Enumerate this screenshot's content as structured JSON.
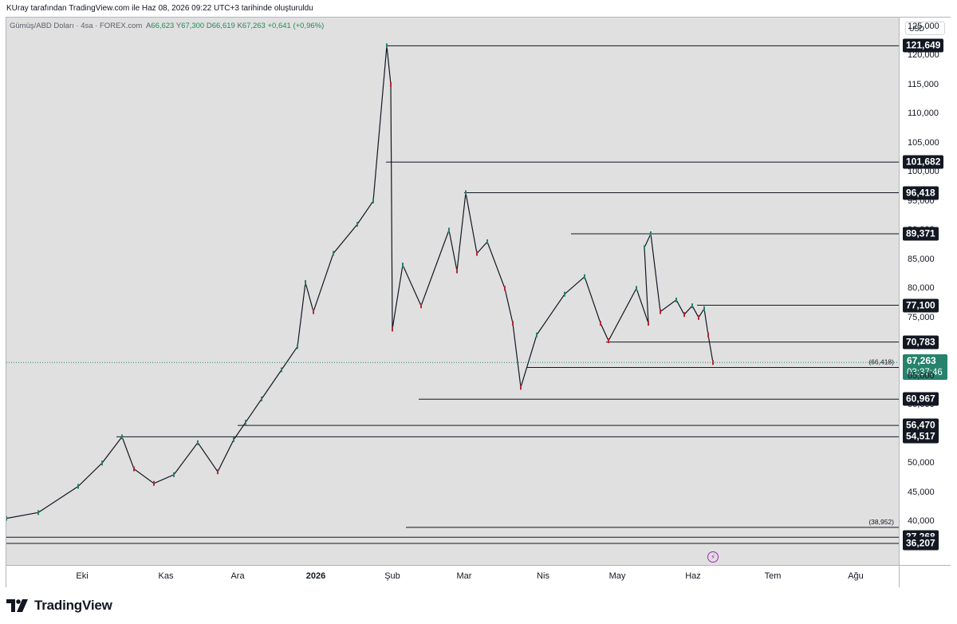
{
  "caption": "KUray tarafından TradingView.com ile Haz 08, 2026 09:22 UTC+3 tarihinde oluşturuldu",
  "legend": {
    "symbol": "Gümüş/ABD Doları · 4sa · FOREX.com",
    "open_label": "A",
    "open": "66,623",
    "high_label": "Y",
    "high": "67,300",
    "low_label": "D",
    "low": "66,619",
    "close_label": "K",
    "close": "67,263",
    "change": "+0,641 (+0,96%)"
  },
  "currency": "USD",
  "current_price": {
    "value": "67,263",
    "countdown": "03:37:46",
    "color": "#26826c"
  },
  "logo_text": "TradingView",
  "alert_icon": "lightning-bolt-icon",
  "chart_data": {
    "type": "line",
    "title": "Gümüş/ABD Doları · 4sa · FOREX.com",
    "ylim": [
      32500,
      126500
    ],
    "y_ticks": [
      {
        "value": 40000,
        "label": "40,000"
      },
      {
        "value": 45000,
        "label": "45,000"
      },
      {
        "value": 50000,
        "label": "50,000"
      },
      {
        "value": 55000,
        "label": "55,000"
      },
      {
        "value": 60000,
        "label": "60,000"
      },
      {
        "value": 65000,
        "label": "65,000"
      },
      {
        "value": 70000,
        "label": "70,000"
      },
      {
        "value": 75000,
        "label": "75,000"
      },
      {
        "value": 80000,
        "label": "80,000"
      },
      {
        "value": 85000,
        "label": "85,000"
      },
      {
        "value": 90000,
        "label": "90,000"
      },
      {
        "value": 95000,
        "label": "95,000"
      },
      {
        "value": 100000,
        "label": "100,000"
      },
      {
        "value": 105000,
        "label": "105,000"
      },
      {
        "value": 110000,
        "label": "110,000"
      },
      {
        "value": 115000,
        "label": "115,000"
      },
      {
        "value": 120000,
        "label": "120,000"
      },
      {
        "value": 125000,
        "label": "125,000"
      }
    ],
    "time_ticks": [
      {
        "label": "Eki",
        "bold": false
      },
      {
        "label": "Kas",
        "bold": false
      },
      {
        "label": "Ara",
        "bold": false
      },
      {
        "label": "2026",
        "bold": true
      },
      {
        "label": "Şub",
        "bold": false
      },
      {
        "label": "Mar",
        "bold": false
      },
      {
        "label": "Nis",
        "bold": false
      },
      {
        "label": "May",
        "bold": false
      },
      {
        "label": "Haz",
        "bold": false
      },
      {
        "label": "Tem",
        "bold": false
      },
      {
        "label": "Ağu",
        "bold": false
      }
    ],
    "levels": [
      {
        "value": 121649,
        "label": "121,649"
      },
      {
        "value": 101682,
        "label": "101,682"
      },
      {
        "value": 96418,
        "label": "96,418"
      },
      {
        "value": 89371,
        "label": "89,371"
      },
      {
        "value": 77100,
        "label": "77,100"
      },
      {
        "value": 70783,
        "label": "70,783"
      },
      {
        "value": 66418,
        "label": "(66,418)"
      },
      {
        "value": 60967,
        "label": "60,967"
      },
      {
        "value": 56470,
        "label": "56,470"
      },
      {
        "value": 54517,
        "label": "54,517"
      },
      {
        "value": 38952,
        "label": "(38,952)"
      },
      {
        "value": 37268,
        "label": "37,268"
      },
      {
        "value": 36207,
        "label": "36,207"
      }
    ],
    "series": [
      {
        "x": [
          "Eki",
          "Eki",
          "Eki",
          "Eki",
          "Eki",
          "Kas",
          "Kas",
          "Kas",
          "Kas",
          "Ara",
          "Ara",
          "Ara",
          "Ara",
          "2026",
          "2026",
          "2026",
          "2026",
          "2026",
          "2026",
          "Şub",
          "Şub",
          "Şub",
          "Şub",
          "Şub",
          "Mar",
          "Mar",
          "Mar",
          "Mar",
          "Mar",
          "Mar",
          "Mar",
          "Nis",
          "Nis",
          "Nis",
          "Nis",
          "May",
          "May",
          "May",
          "May",
          "May",
          "May",
          "May",
          "May",
          "Haz",
          "Haz",
          "Haz",
          "Haz",
          "Haz",
          "Haz",
          "Haz"
        ],
        "values": [
          40500,
          41500,
          46000,
          50000,
          54500,
          49000,
          46500,
          48000,
          53500,
          48500,
          54000,
          57000,
          61000,
          66000,
          70000,
          81000,
          76000,
          86000,
          91000,
          95000,
          121649,
          115000,
          73000,
          84000,
          77000,
          90000,
          83000,
          96418,
          86000,
          88000,
          80000,
          74000,
          63000,
          72000,
          79000,
          82000,
          74000,
          71000,
          80000,
          74000,
          87000,
          89371,
          76000,
          78000,
          75500,
          77000,
          75000,
          76500,
          72000,
          67263
        ]
      }
    ]
  }
}
